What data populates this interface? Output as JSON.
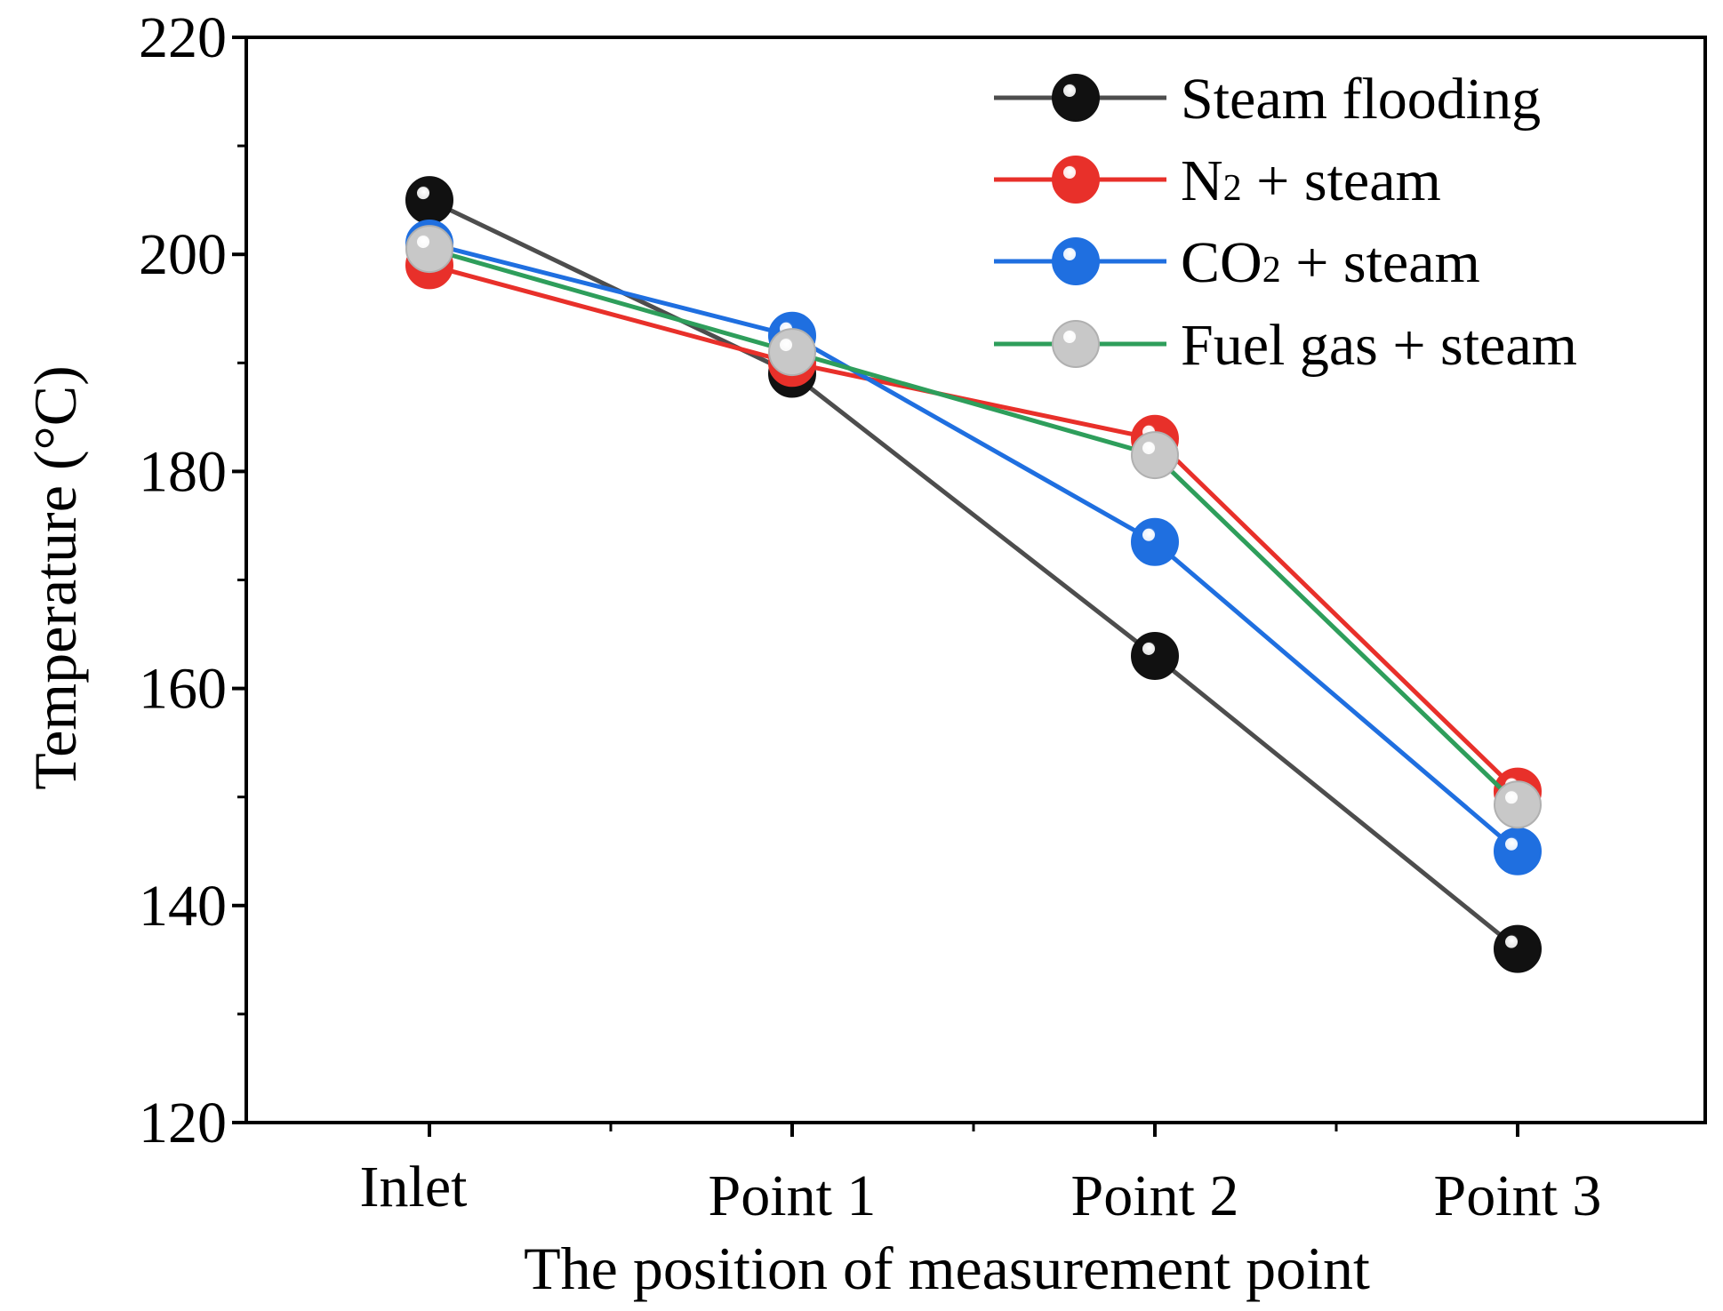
{
  "chart_data": {
    "type": "line",
    "xlabel": "The position of measurement point",
    "ylabel": "Temperature (°C)",
    "categories": [
      "Inlet",
      "Point 1",
      "Point 2",
      "Point 3"
    ],
    "ylim": [
      120,
      220
    ],
    "yticks": [
      120,
      140,
      160,
      180,
      200,
      220
    ],
    "y_minor_step": 10,
    "grid": false,
    "legend_position": "top-right",
    "series": [
      {
        "name": "Steam flooding",
        "color": "#4d4d4d",
        "marker_color": "#111111",
        "values": [
          205,
          189,
          163,
          136
        ]
      },
      {
        "name": "N2 + steam",
        "name_parts": [
          "N",
          "2",
          " + steam"
        ],
        "color": "#e8302a",
        "marker_color": "#e8302a",
        "values": [
          199,
          190,
          183,
          150.5
        ]
      },
      {
        "name": "CO2 + steam",
        "name_parts": [
          "CO",
          "2",
          " + steam"
        ],
        "color": "#1f6fe0",
        "marker_color": "#1f6fe0",
        "values": [
          201,
          192.5,
          173.5,
          145
        ]
      },
      {
        "name": "Fuel gas + steam",
        "color": "#2e9e5b",
        "marker_color": "#c8c8c8",
        "values": [
          200.5,
          191,
          181.5,
          149.3
        ]
      }
    ]
  }
}
